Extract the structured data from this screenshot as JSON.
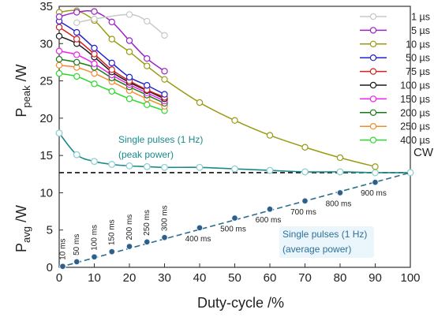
{
  "chart_data": {
    "type": "line",
    "xlabel": "Duty-cycle /%",
    "ylabel_top": {
      "main": "P",
      "sub": "peak",
      "unit": " /W"
    },
    "ylabel_bottom": {
      "main": "P",
      "sub": "avg",
      "unit": " /W"
    },
    "xlim": [
      0,
      100
    ],
    "ylim": [
      0,
      35
    ],
    "x_ticks": [
      0,
      10,
      20,
      30,
      40,
      50,
      60,
      70,
      80,
      90,
      100
    ],
    "y_ticks": [
      0,
      5,
      10,
      15,
      20,
      25,
      30,
      35
    ],
    "cw": {
      "label": "CW",
      "value": 12.7
    },
    "peak_series": [
      {
        "name": "1 µs",
        "color": "#c8c8c8",
        "x": [
          5,
          10,
          20,
          25,
          30
        ],
        "values": [
          32.8,
          33.3,
          33.9,
          33.0,
          31.1
        ]
      },
      {
        "name": "5 µs",
        "color": "#9b22c8",
        "x": [
          0,
          5,
          10,
          15,
          20,
          25,
          30
        ],
        "values": [
          33.6,
          34.2,
          34.3,
          32.9,
          30.4,
          28.0,
          26.3
        ]
      },
      {
        "name": "10 µs",
        "color": "#9a9a14",
        "x": [
          0,
          5,
          10,
          15,
          20,
          25,
          30,
          40,
          50,
          60,
          70,
          80,
          90
        ],
        "values": [
          34.2,
          34.4,
          33.1,
          30.6,
          28.9,
          27.0,
          25.2,
          22.1,
          19.7,
          17.7,
          16.1,
          14.7,
          13.5
        ]
      },
      {
        "name": "50 µs",
        "color": "#2222cc",
        "x": [
          0,
          5,
          10,
          15,
          20,
          25,
          30
        ],
        "values": [
          33.0,
          31.5,
          29.4,
          27.4,
          25.5,
          24.4,
          23.2
        ]
      },
      {
        "name": "75 µs",
        "color": "#d42020",
        "x": [
          0,
          5,
          10,
          15,
          20,
          25,
          30
        ],
        "values": [
          32.2,
          30.6,
          28.6,
          26.5,
          25.0,
          23.8,
          22.8
        ]
      },
      {
        "name": "100 µs",
        "color": "#1a1a1a",
        "x": [
          0,
          5,
          10,
          15,
          20,
          25,
          30
        ],
        "values": [
          31.0,
          30.0,
          28.2,
          26.2,
          24.8,
          23.7,
          22.6
        ]
      },
      {
        "name": "150 µs",
        "color": "#ee22ee",
        "x": [
          0,
          5,
          10,
          15,
          20,
          25,
          30
        ],
        "values": [
          29.0,
          28.5,
          27.3,
          25.8,
          24.5,
          23.4,
          22.3
        ]
      },
      {
        "name": "200 µs",
        "color": "#1a7a1a",
        "x": [
          0,
          5,
          10,
          15,
          20,
          25,
          30
        ],
        "values": [
          27.9,
          27.5,
          26.8,
          25.4,
          24.2,
          23.1,
          22.0
        ]
      },
      {
        "name": "250 µs",
        "color": "#f08c2c",
        "x": [
          0,
          5,
          10,
          15,
          20,
          25,
          30
        ],
        "values": [
          27.1,
          26.8,
          26.0,
          24.9,
          23.7,
          22.6,
          21.6
        ]
      },
      {
        "name": "400 µs",
        "color": "#2ed82e",
        "x": [
          0,
          5,
          10,
          15,
          20,
          25,
          30
        ],
        "values": [
          26.0,
          25.6,
          24.6,
          23.6,
          22.6,
          21.8,
          21.0
        ]
      }
    ],
    "single_peak": {
      "color": "#1a8a8a",
      "x": [
        0,
        5,
        10,
        15,
        20,
        25,
        30,
        40,
        50,
        60,
        70,
        80,
        90,
        100
      ],
      "values": [
        18.0,
        15.1,
        14.2,
        13.8,
        13.6,
        13.5,
        13.4,
        13.4,
        13.2,
        13.0,
        12.8,
        12.8,
        12.7,
        12.7
      ]
    },
    "avg_fit": {
      "color": "#2b6e8c",
      "x": [
        0,
        100
      ],
      "values": [
        0,
        12.7
      ]
    },
    "avg_points": {
      "color": "#2f5f88",
      "x": [
        1,
        5,
        10,
        15,
        20,
        25,
        30,
        40,
        50,
        60,
        70,
        80,
        90
      ],
      "values": [
        0.13,
        0.75,
        1.4,
        2.1,
        2.8,
        3.4,
        4.0,
        5.3,
        6.6,
        7.8,
        8.9,
        10.0,
        11.4
      ],
      "labels": [
        "10 ms",
        "50 ms",
        "100 ms",
        "150 ms",
        "200 ms",
        "250 ms",
        "300 ms",
        "400 ms",
        "500 ms",
        "600 ms",
        "700 ms",
        "800 ms",
        "900 ms"
      ]
    },
    "annotation_peak": {
      "lines": [
        "Single pulses (1 Hz)",
        "(peak power)"
      ],
      "color": "#1a8a8a"
    },
    "annotation_avg": {
      "lines": [
        "Single pulses (1 Hz)",
        "(average power)"
      ],
      "color": "#2f6f99"
    },
    "legend_position": "top-right"
  }
}
